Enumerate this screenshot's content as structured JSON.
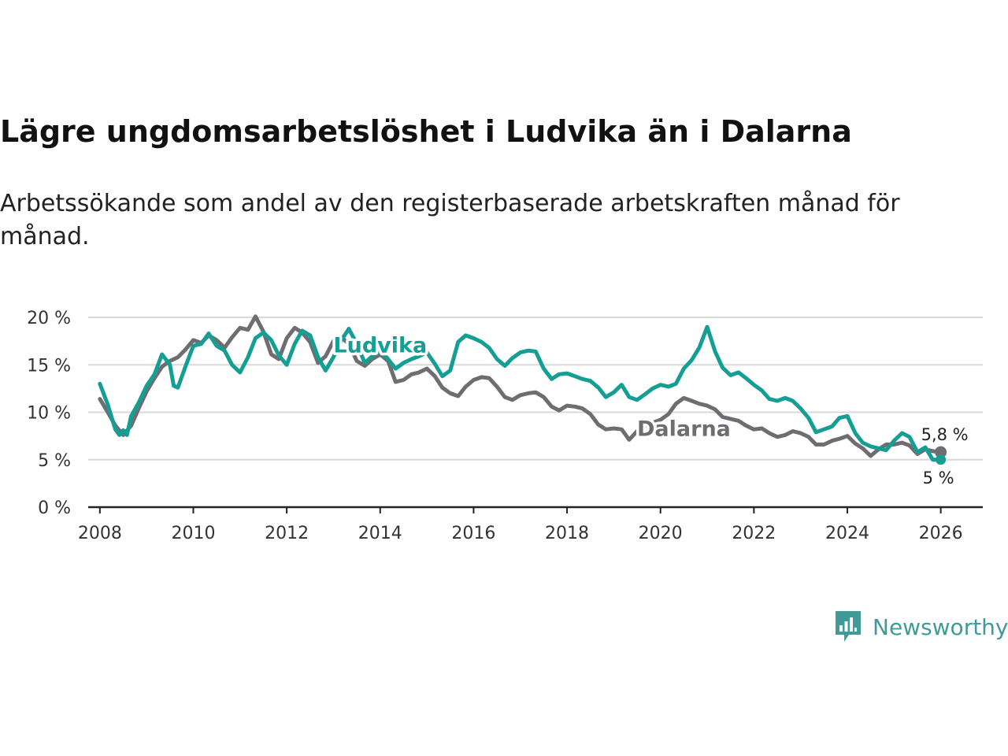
{
  "header": {
    "title": "Lägre ungdomsarbetslöshet i Ludvika än i Dalarna",
    "subtitle": "Arbetssökande som andel av den registerbaserade arbetskraften månad för månad."
  },
  "brand": {
    "name": "Newsworthy",
    "color": "#3f9a98"
  },
  "chart_data": {
    "type": "line",
    "title": "Lägre ungdomsarbetslöshet i Ludvika än i Dalarna",
    "subtitle": "Arbetssökande som andel av den registerbaserade arbetskraften månad för månad.",
    "xlabel": "",
    "ylabel": "",
    "xlim": [
      2007.75,
      2026.9
    ],
    "ylim": [
      0,
      20
    ],
    "x_ticks": [
      2008,
      2010,
      2012,
      2014,
      2016,
      2018,
      2020,
      2022,
      2024,
      2026
    ],
    "x_tick_labels": [
      "2008",
      "2010",
      "2012",
      "2014",
      "2016",
      "2018",
      "2020",
      "2022",
      "2024",
      "2026"
    ],
    "y_ticks": [
      0,
      5,
      10,
      15,
      20
    ],
    "y_tick_labels": [
      "0 %",
      "5 %",
      "10 %",
      "15 %",
      "20 %"
    ],
    "grid": true,
    "series": [
      {
        "name": "Dalarna",
        "color": "#6f6d72",
        "label": "Dalarna",
        "end_label": "5,8 %",
        "points": [
          [
            2008.0,
            11.4
          ],
          [
            2008.17,
            10.0
          ],
          [
            2008.33,
            8.6
          ],
          [
            2008.5,
            7.6
          ],
          [
            2008.67,
            8.6
          ],
          [
            2008.83,
            10.4
          ],
          [
            2009.0,
            12.2
          ],
          [
            2009.17,
            13.6
          ],
          [
            2009.33,
            14.8
          ],
          [
            2009.5,
            15.4
          ],
          [
            2009.67,
            15.8
          ],
          [
            2009.83,
            16.6
          ],
          [
            2010.0,
            17.6
          ],
          [
            2010.17,
            17.3
          ],
          [
            2010.33,
            18.1
          ],
          [
            2010.5,
            17.6
          ],
          [
            2010.67,
            16.8
          ],
          [
            2010.83,
            17.9
          ],
          [
            2011.0,
            18.9
          ],
          [
            2011.17,
            18.7
          ],
          [
            2011.33,
            20.1
          ],
          [
            2011.5,
            18.5
          ],
          [
            2011.67,
            16.1
          ],
          [
            2011.83,
            15.6
          ],
          [
            2012.0,
            17.8
          ],
          [
            2012.17,
            18.9
          ],
          [
            2012.33,
            18.4
          ],
          [
            2012.5,
            17.4
          ],
          [
            2012.67,
            15.2
          ],
          [
            2012.83,
            15.9
          ],
          [
            2013.0,
            17.5
          ],
          [
            2013.17,
            17.9
          ],
          [
            2013.33,
            17.2
          ],
          [
            2013.5,
            15.4
          ],
          [
            2013.67,
            14.9
          ],
          [
            2013.83,
            15.6
          ],
          [
            2014.0,
            16.1
          ],
          [
            2014.17,
            15.4
          ],
          [
            2014.33,
            13.2
          ],
          [
            2014.5,
            13.4
          ],
          [
            2014.67,
            14.0
          ],
          [
            2014.83,
            14.2
          ],
          [
            2015.0,
            14.6
          ],
          [
            2015.17,
            13.8
          ],
          [
            2015.33,
            12.6
          ],
          [
            2015.5,
            12.0
          ],
          [
            2015.67,
            11.7
          ],
          [
            2015.83,
            12.7
          ],
          [
            2016.0,
            13.4
          ],
          [
            2016.17,
            13.7
          ],
          [
            2016.33,
            13.6
          ],
          [
            2016.5,
            12.7
          ],
          [
            2016.67,
            11.6
          ],
          [
            2016.83,
            11.3
          ],
          [
            2017.0,
            11.8
          ],
          [
            2017.17,
            12.0
          ],
          [
            2017.33,
            12.1
          ],
          [
            2017.5,
            11.6
          ],
          [
            2017.67,
            10.6
          ],
          [
            2017.83,
            10.2
          ],
          [
            2018.0,
            10.7
          ],
          [
            2018.17,
            10.6
          ],
          [
            2018.33,
            10.4
          ],
          [
            2018.5,
            9.8
          ],
          [
            2018.67,
            8.7
          ],
          [
            2018.83,
            8.2
          ],
          [
            2019.0,
            8.3
          ],
          [
            2019.17,
            8.2
          ],
          [
            2019.33,
            7.1
          ],
          [
            2019.5,
            8.0
          ],
          [
            2019.67,
            8.6
          ],
          [
            2019.83,
            8.9
          ],
          [
            2020.0,
            9.2
          ],
          [
            2020.17,
            9.8
          ],
          [
            2020.33,
            10.9
          ],
          [
            2020.5,
            11.5
          ],
          [
            2020.67,
            11.2
          ],
          [
            2020.83,
            10.9
          ],
          [
            2021.0,
            10.7
          ],
          [
            2021.17,
            10.3
          ],
          [
            2021.33,
            9.5
          ],
          [
            2021.5,
            9.3
          ],
          [
            2021.67,
            9.1
          ],
          [
            2021.83,
            8.6
          ],
          [
            2022.0,
            8.2
          ],
          [
            2022.17,
            8.3
          ],
          [
            2022.33,
            7.8
          ],
          [
            2022.5,
            7.4
          ],
          [
            2022.67,
            7.6
          ],
          [
            2022.83,
            8.0
          ],
          [
            2023.0,
            7.8
          ],
          [
            2023.17,
            7.4
          ],
          [
            2023.33,
            6.6
          ],
          [
            2023.5,
            6.6
          ],
          [
            2023.67,
            7.0
          ],
          [
            2023.83,
            7.2
          ],
          [
            2024.0,
            7.5
          ],
          [
            2024.17,
            6.7
          ],
          [
            2024.33,
            6.2
          ],
          [
            2024.5,
            5.4
          ],
          [
            2024.67,
            6.1
          ],
          [
            2024.83,
            6.6
          ],
          [
            2025.0,
            6.6
          ],
          [
            2025.17,
            6.8
          ],
          [
            2025.33,
            6.5
          ],
          [
            2025.5,
            5.6
          ],
          [
            2025.67,
            6.1
          ],
          [
            2025.83,
            5.9
          ],
          [
            2026.0,
            5.8
          ]
        ]
      },
      {
        "name": "Ludvika",
        "color": "#159e93",
        "label": "Ludvika",
        "end_label": "5 %",
        "points": [
          [
            2008.0,
            13.0
          ],
          [
            2008.17,
            10.8
          ],
          [
            2008.33,
            8.2
          ],
          [
            2008.42,
            7.6
          ],
          [
            2008.5,
            8.1
          ],
          [
            2008.58,
            7.6
          ],
          [
            2008.67,
            9.6
          ],
          [
            2008.83,
            11.0
          ],
          [
            2009.0,
            12.8
          ],
          [
            2009.17,
            14.0
          ],
          [
            2009.33,
            16.1
          ],
          [
            2009.5,
            15.0
          ],
          [
            2009.58,
            12.8
          ],
          [
            2009.67,
            12.6
          ],
          [
            2009.83,
            14.8
          ],
          [
            2010.0,
            17.0
          ],
          [
            2010.17,
            17.2
          ],
          [
            2010.33,
            18.3
          ],
          [
            2010.5,
            17.0
          ],
          [
            2010.67,
            16.5
          ],
          [
            2010.83,
            15.0
          ],
          [
            2011.0,
            14.2
          ],
          [
            2011.17,
            15.8
          ],
          [
            2011.33,
            17.8
          ],
          [
            2011.5,
            18.4
          ],
          [
            2011.67,
            17.6
          ],
          [
            2011.83,
            16.0
          ],
          [
            2012.0,
            15.0
          ],
          [
            2012.17,
            17.2
          ],
          [
            2012.33,
            18.6
          ],
          [
            2012.5,
            18.1
          ],
          [
            2012.67,
            15.8
          ],
          [
            2012.83,
            14.4
          ],
          [
            2013.0,
            15.8
          ],
          [
            2013.17,
            17.6
          ],
          [
            2013.33,
            18.8
          ],
          [
            2013.5,
            17.2
          ],
          [
            2013.67,
            15.2
          ],
          [
            2013.83,
            15.9
          ],
          [
            2014.0,
            16.5
          ],
          [
            2014.17,
            15.6
          ],
          [
            2014.33,
            14.6
          ],
          [
            2014.5,
            15.2
          ],
          [
            2014.67,
            15.6
          ],
          [
            2014.83,
            15.9
          ],
          [
            2015.0,
            16.3
          ],
          [
            2015.17,
            15.1
          ],
          [
            2015.33,
            13.8
          ],
          [
            2015.5,
            14.4
          ],
          [
            2015.67,
            17.4
          ],
          [
            2015.83,
            18.1
          ],
          [
            2016.0,
            17.8
          ],
          [
            2016.17,
            17.4
          ],
          [
            2016.33,
            16.8
          ],
          [
            2016.5,
            15.6
          ],
          [
            2016.67,
            14.9
          ],
          [
            2016.83,
            15.7
          ],
          [
            2017.0,
            16.3
          ],
          [
            2017.17,
            16.5
          ],
          [
            2017.33,
            16.4
          ],
          [
            2017.5,
            14.6
          ],
          [
            2017.67,
            13.5
          ],
          [
            2017.83,
            14.0
          ],
          [
            2018.0,
            14.1
          ],
          [
            2018.17,
            13.8
          ],
          [
            2018.33,
            13.5
          ],
          [
            2018.5,
            13.3
          ],
          [
            2018.67,
            12.6
          ],
          [
            2018.83,
            11.6
          ],
          [
            2019.0,
            12.1
          ],
          [
            2019.17,
            12.9
          ],
          [
            2019.33,
            11.6
          ],
          [
            2019.5,
            11.3
          ],
          [
            2019.67,
            11.9
          ],
          [
            2019.83,
            12.5
          ],
          [
            2020.0,
            12.9
          ],
          [
            2020.17,
            12.7
          ],
          [
            2020.33,
            13.0
          ],
          [
            2020.5,
            14.6
          ],
          [
            2020.67,
            15.5
          ],
          [
            2020.83,
            16.8
          ],
          [
            2021.0,
            19.0
          ],
          [
            2021.17,
            16.4
          ],
          [
            2021.33,
            14.7
          ],
          [
            2021.5,
            13.9
          ],
          [
            2021.67,
            14.2
          ],
          [
            2021.83,
            13.6
          ],
          [
            2022.0,
            12.9
          ],
          [
            2022.17,
            12.3
          ],
          [
            2022.33,
            11.4
          ],
          [
            2022.5,
            11.2
          ],
          [
            2022.67,
            11.5
          ],
          [
            2022.83,
            11.2
          ],
          [
            2023.0,
            10.4
          ],
          [
            2023.17,
            9.4
          ],
          [
            2023.33,
            7.9
          ],
          [
            2023.5,
            8.2
          ],
          [
            2023.67,
            8.5
          ],
          [
            2023.83,
            9.4
          ],
          [
            2024.0,
            9.6
          ],
          [
            2024.17,
            7.8
          ],
          [
            2024.33,
            6.8
          ],
          [
            2024.5,
            6.4
          ],
          [
            2024.67,
            6.2
          ],
          [
            2024.83,
            6.0
          ],
          [
            2025.0,
            7.0
          ],
          [
            2025.17,
            7.8
          ],
          [
            2025.33,
            7.4
          ],
          [
            2025.5,
            5.8
          ],
          [
            2025.67,
            6.3
          ],
          [
            2025.83,
            5.0
          ],
          [
            2026.0,
            5.0
          ]
        ]
      }
    ]
  }
}
